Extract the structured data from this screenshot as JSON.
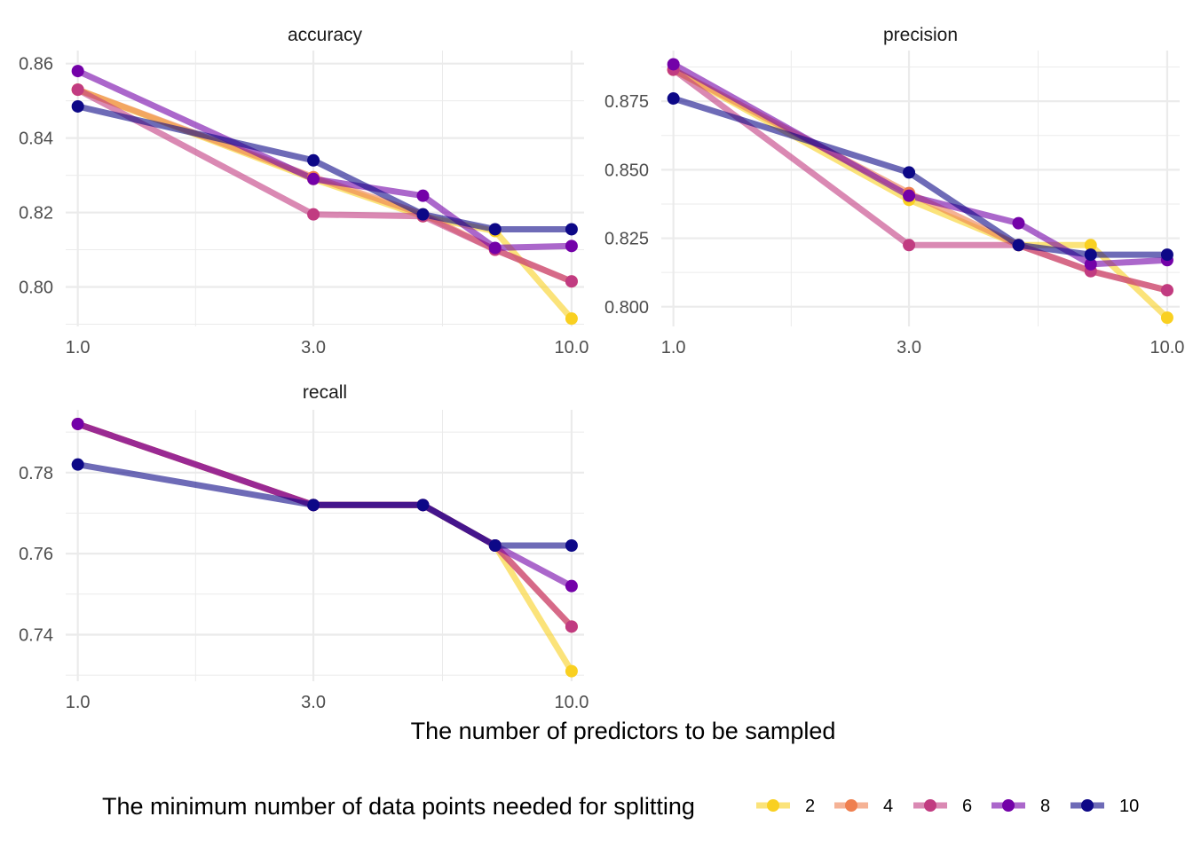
{
  "chart_data": {
    "type": "line",
    "x_title": "The number of predictors to be sampled",
    "legend_title": "The minimum number of data points needed for splitting",
    "legend_position": "bottom",
    "x_scale": "log",
    "x_ticks": [
      1,
      3,
      10
    ],
    "x_tick_labels": [
      "1.0",
      "3.0",
      "10.0"
    ],
    "x": [
      1,
      3,
      5,
      7,
      10
    ],
    "grid": true,
    "series_names": [
      "2",
      "4",
      "6",
      "8",
      "10"
    ],
    "series_colors": [
      "#F9D021",
      "#EF7F4F",
      "#C13B81",
      "#7301A8",
      "#0D0887"
    ],
    "panels": [
      {
        "strip": "accuracy",
        "ylim": [
          0.7894,
          0.8635
        ],
        "y_ticks": [
          0.8,
          0.82,
          0.84,
          0.86
        ],
        "y_tick_labels": [
          "0.80",
          "0.82",
          "0.84",
          "0.86"
        ],
        "series": [
          {
            "name": "2",
            "values": [
              0.853,
              0.829,
              0.819,
              0.815,
              0.7915
            ]
          },
          {
            "name": "4",
            "values": [
              0.853,
              0.8295,
              0.8195,
              0.81,
              0.8015
            ]
          },
          {
            "name": "6",
            "values": [
              0.853,
              0.8195,
              0.819,
              0.81,
              0.8015
            ]
          },
          {
            "name": "8",
            "values": [
              0.858,
              0.829,
              0.8245,
              0.8105,
              0.811
            ]
          },
          {
            "name": "10",
            "values": [
              0.8485,
              0.834,
              0.8195,
              0.8155,
              0.8155
            ]
          }
        ]
      },
      {
        "strip": "precision",
        "ylim": [
          0.7928,
          0.8935
        ],
        "y_ticks": [
          0.8,
          0.825,
          0.85,
          0.875
        ],
        "y_tick_labels": [
          "0.800",
          "0.825",
          "0.850",
          "0.875"
        ],
        "series": [
          {
            "name": "2",
            "values": [
              0.8865,
              0.839,
              0.8225,
              0.8225,
              0.796
            ]
          },
          {
            "name": "4",
            "values": [
              0.8865,
              0.8415,
              0.8225,
              0.813,
              0.806
            ]
          },
          {
            "name": "6",
            "values": [
              0.8865,
              0.8225,
              0.8225,
              0.813,
              0.806
            ]
          },
          {
            "name": "8",
            "values": [
              0.8885,
              0.8405,
              0.8305,
              0.8155,
              0.817
            ]
          },
          {
            "name": "10",
            "values": [
              0.876,
              0.849,
              0.8225,
              0.819,
              0.819
            ]
          }
        ]
      },
      {
        "strip": "recall",
        "ylim": [
          0.7285,
          0.7955
        ],
        "y_ticks": [
          0.74,
          0.76,
          0.78
        ],
        "y_tick_labels": [
          "0.74",
          "0.76",
          "0.78"
        ],
        "series": [
          {
            "name": "2",
            "values": [
              0.792,
              0.772,
              0.772,
              0.762,
              0.731
            ]
          },
          {
            "name": "4",
            "values": [
              0.792,
              0.772,
              0.772,
              0.762,
              0.742
            ]
          },
          {
            "name": "6",
            "values": [
              0.792,
              0.772,
              0.772,
              0.762,
              0.742
            ]
          },
          {
            "name": "8",
            "values": [
              0.792,
              0.772,
              0.772,
              0.762,
              0.752
            ]
          },
          {
            "name": "10",
            "values": [
              0.782,
              0.772,
              0.772,
              0.762,
              0.762
            ]
          }
        ]
      }
    ]
  }
}
